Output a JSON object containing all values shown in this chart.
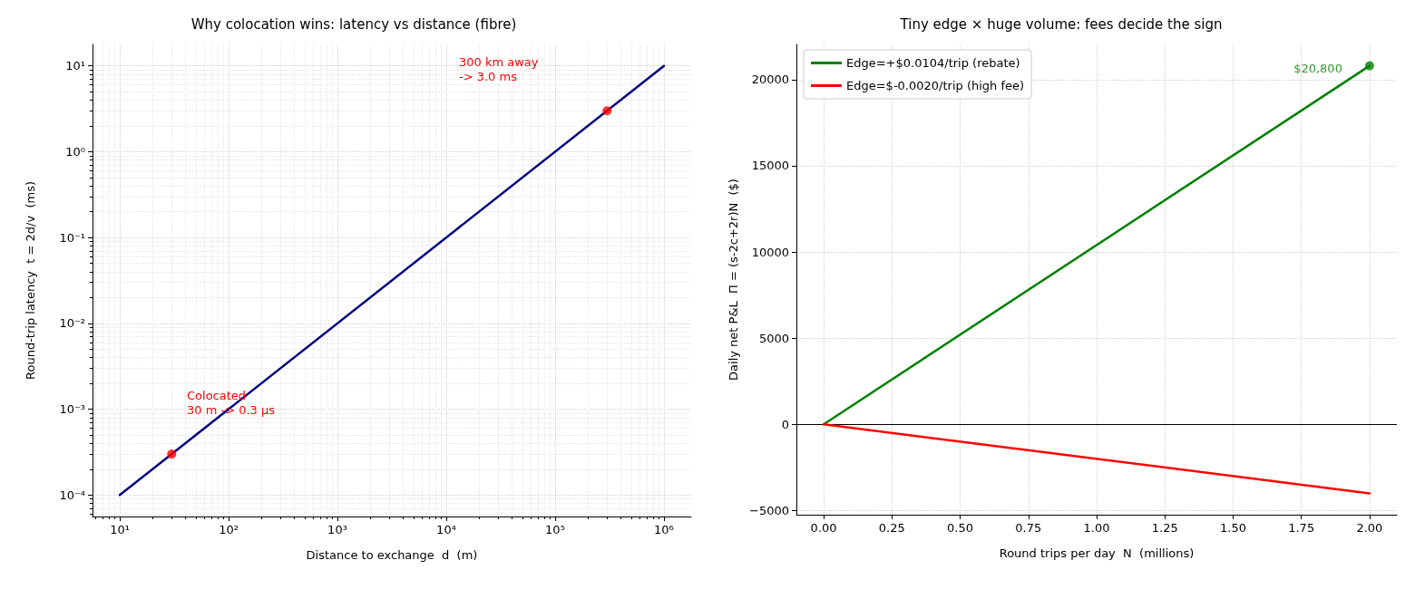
{
  "chart_data": [
    {
      "type": "line",
      "title": "Why colocation wins: latency vs distance (fibre)",
      "xlabel": "Distance to exchange  d  (m)",
      "ylabel": "Round-trip latency  t = 2d/v  (ms)",
      "log": "xy",
      "grid": true,
      "xlim": [
        5.62,
        1780000
      ],
      "ylim": [
        5.62e-05,
        17.8
      ],
      "xticks": [
        {
          "value": 10,
          "label": "10¹"
        },
        {
          "value": 100,
          "label": "10²"
        },
        {
          "value": 1000,
          "label": "10³"
        },
        {
          "value": 10000,
          "label": "10⁴"
        },
        {
          "value": 100000,
          "label": "10⁵"
        },
        {
          "value": 1000000,
          "label": "10⁶"
        }
      ],
      "yticks": [
        {
          "value": 0.0001,
          "label": "10⁻⁴"
        },
        {
          "value": 0.001,
          "label": "10⁻³"
        },
        {
          "value": 0.01,
          "label": "10⁻²"
        },
        {
          "value": 0.1,
          "label": "10⁻¹"
        },
        {
          "value": 1,
          "label": "10⁰"
        },
        {
          "value": 10,
          "label": "10¹"
        }
      ],
      "series": [
        {
          "type": "line",
          "color": "#000080",
          "x": [
            10,
            1000000
          ],
          "values": [
            0.0001,
            10
          ],
          "marker": "none",
          "line_style": "solid"
        },
        {
          "type": "scatter",
          "color": "#ff0000",
          "x": [
            30,
            300000
          ],
          "values": [
            0.0003,
            3
          ],
          "marker": "circle"
        }
      ],
      "annotations": [
        "300 km away\n-> 3.0 ms",
        "Colocated\n30 m -> 0.3 µs"
      ]
    },
    {
      "type": "line",
      "title": "Tiny edge × huge volume: fees decide the sign",
      "xlabel": "Round trips per day  N  (millions)",
      "ylabel": "Daily net P&L  Π = (s-2c+2r)N  ($)",
      "grid": true,
      "legend": "top left",
      "xlim": [
        -0.1,
        2.1
      ],
      "ylim": [
        -5240,
        22040
      ],
      "xticks": [
        {
          "value": 0,
          "label": "0.00"
        },
        {
          "value": 0.25,
          "label": "0.25"
        },
        {
          "value": 0.5,
          "label": "0.50"
        },
        {
          "value": 0.75,
          "label": "0.75"
        },
        {
          "value": 1,
          "label": "1.00"
        },
        {
          "value": 1.25,
          "label": "1.25"
        },
        {
          "value": 1.5,
          "label": "1.50"
        },
        {
          "value": 1.75,
          "label": "1.75"
        },
        {
          "value": 2,
          "label": "2.00"
        }
      ],
      "yticks": [
        {
          "value": -5000,
          "label": "−5000"
        },
        0,
        5000,
        10000,
        15000,
        20000
      ],
      "series": [
        {
          "type": "line",
          "name": "Edge=+$0.0104/trip (rebate)",
          "color": "#008000",
          "x": [
            0,
            2
          ],
          "values": [
            0,
            20800
          ],
          "marker": "none",
          "line_style": "solid"
        },
        {
          "type": "line",
          "name": "Edge=$-0.0020/trip (high fee)",
          "color": "#ff0000",
          "x": [
            0,
            2
          ],
          "values": [
            0,
            -4000
          ],
          "marker": "none",
          "line_style": "solid"
        },
        {
          "type": "scatter",
          "color": "#008000",
          "x": [
            2
          ],
          "values": [
            20800
          ],
          "marker": "circle"
        }
      ],
      "ref_lines": [
        {
          "axis": "y",
          "value": 0,
          "color": "#000000"
        }
      ],
      "annotations": [
        {
          "text": "$20,800",
          "x": 2,
          "y": 20800
        }
      ]
    }
  ]
}
